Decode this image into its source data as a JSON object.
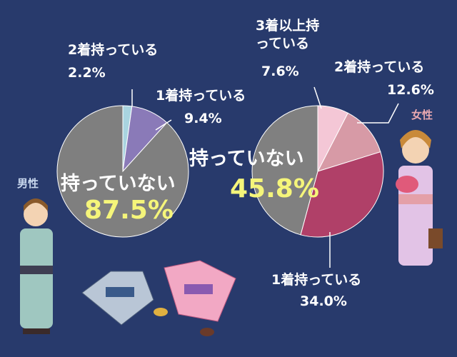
{
  "chart_data": [
    {
      "type": "pie",
      "title": "男性",
      "categories": [
        "2着持っている",
        "1着持っている",
        "持っていない"
      ],
      "values": [
        2.2,
        9.4,
        87.5
      ],
      "value_labels": [
        "2.2%",
        "9.4%",
        "87.5%"
      ],
      "colors": [
        "#a9d4e0",
        "#8a7ab8",
        "#7f7f7f"
      ]
    },
    {
      "type": "pie",
      "title": "女性",
      "categories": [
        "3着以上持\nっている",
        "2着持っている",
        "1着持っている",
        "持っていない"
      ],
      "values": [
        7.6,
        12.6,
        34.0,
        45.8
      ],
      "value_labels": [
        "7.6%",
        "12.6%",
        "34.0%",
        "45.8%"
      ],
      "colors": [
        "#f4c7d6",
        "#d79aa6",
        "#b04068",
        "#808080"
      ]
    }
  ]
}
